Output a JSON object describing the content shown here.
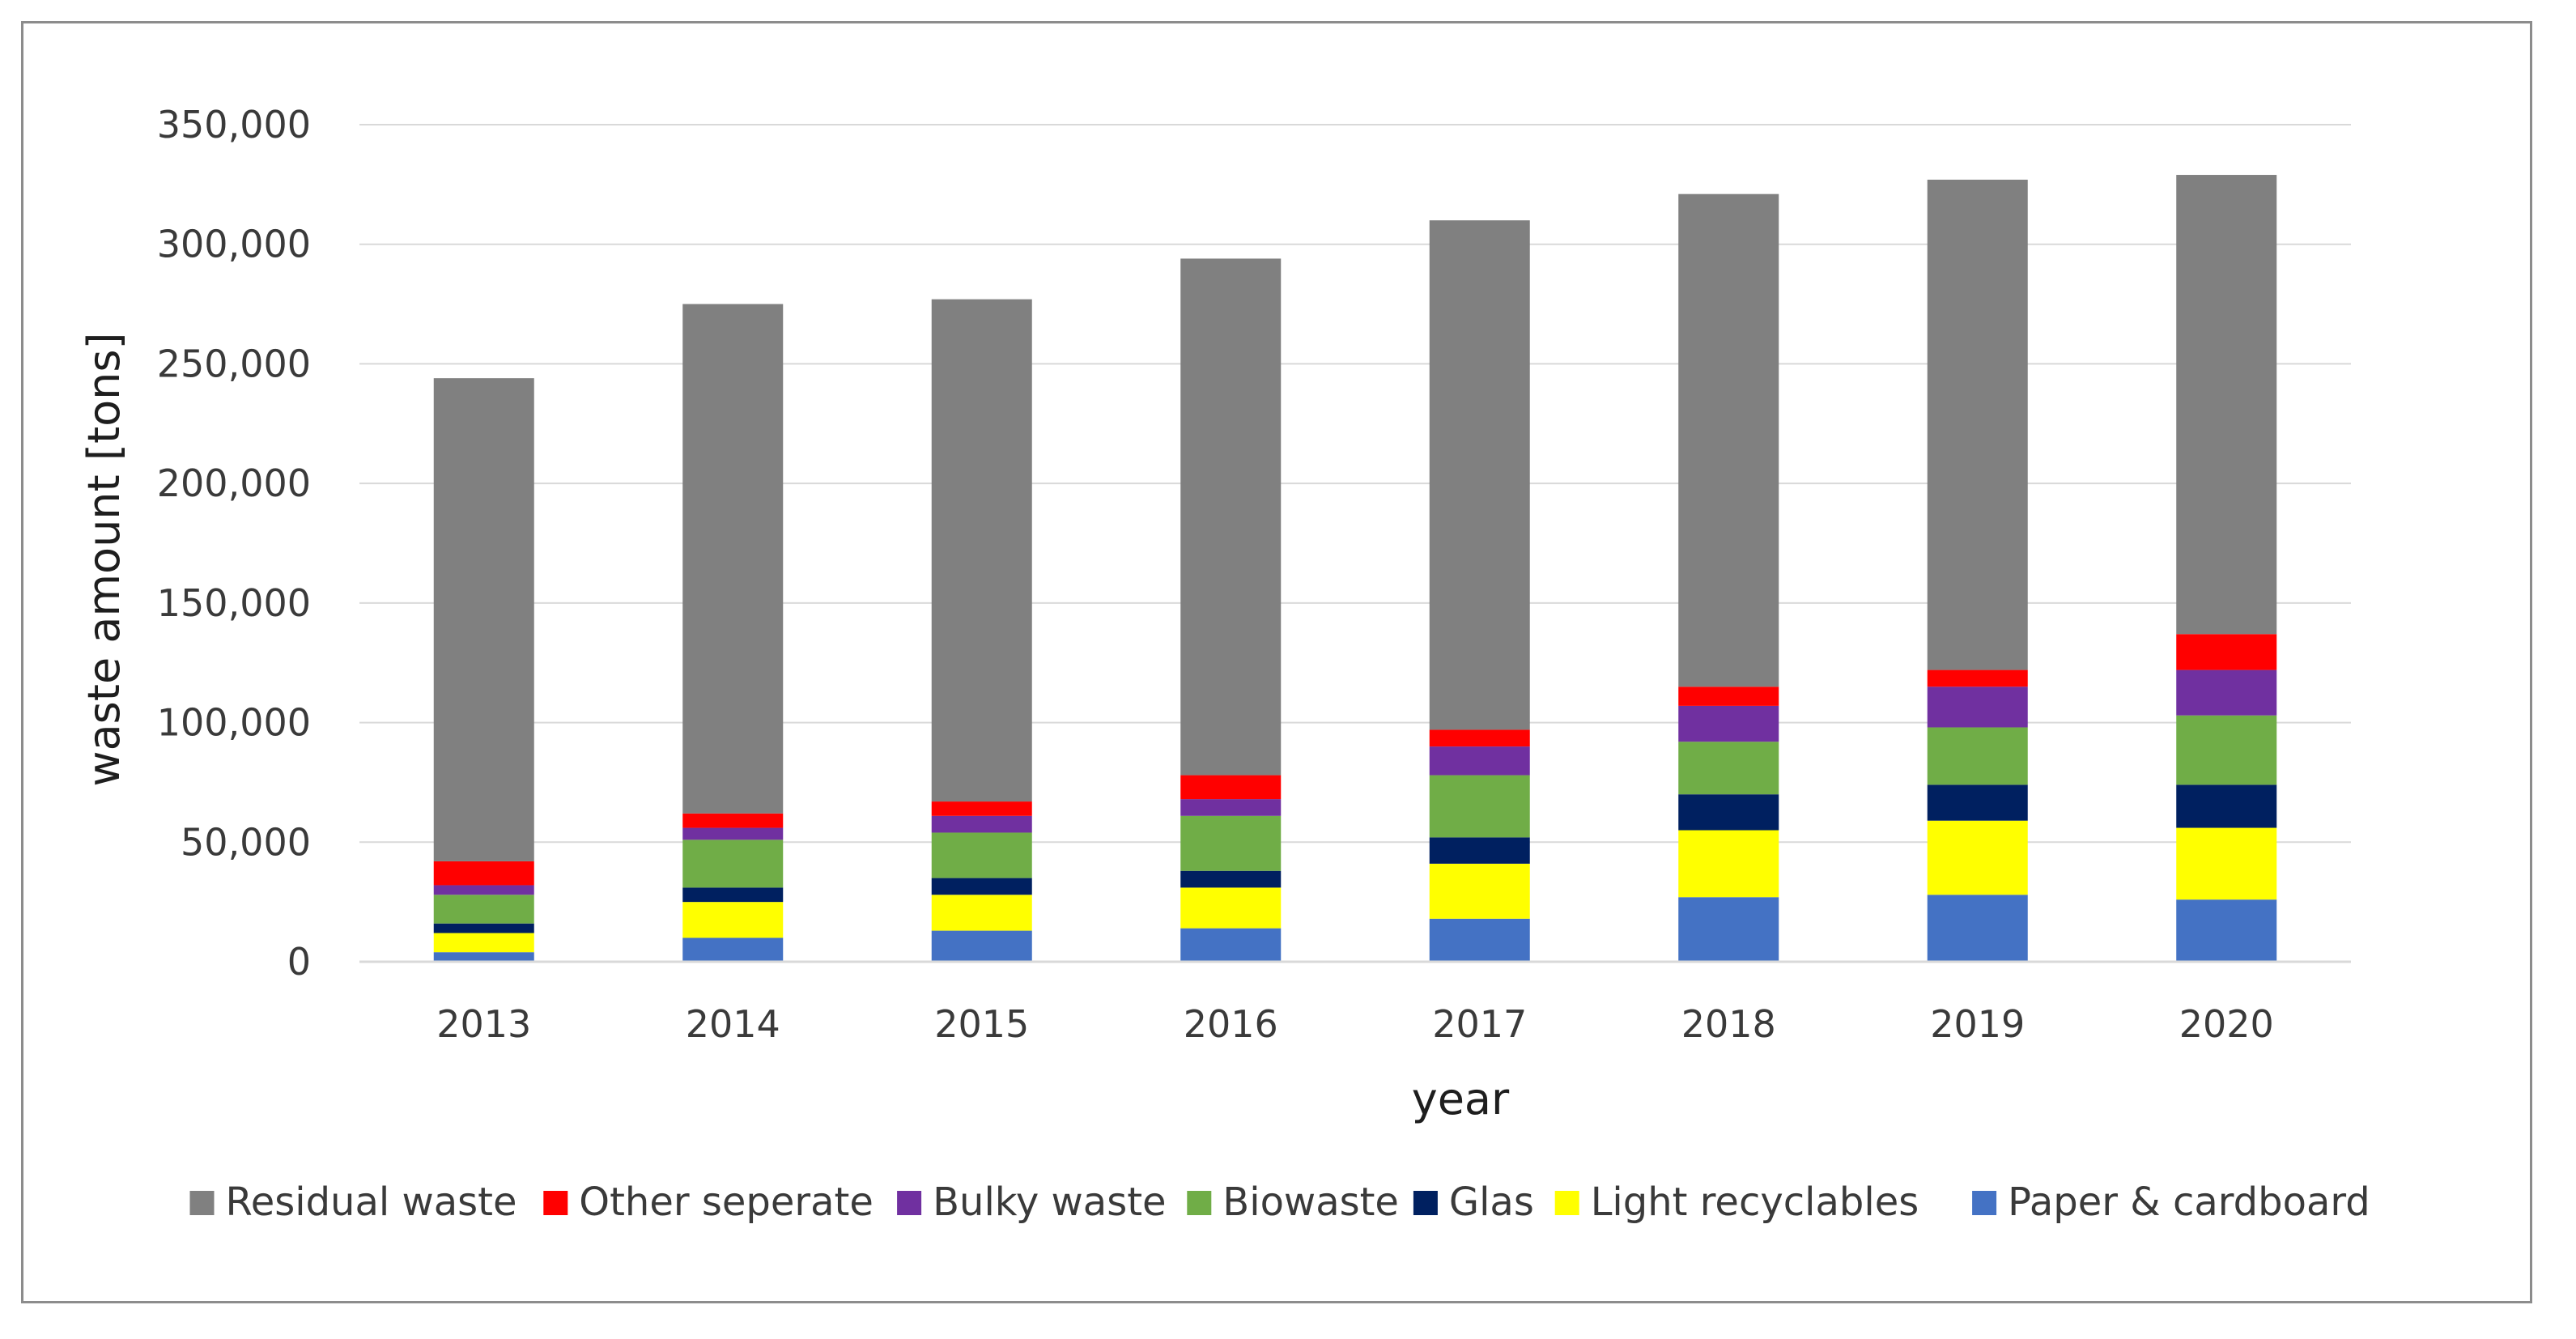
{
  "chart_data": {
    "type": "bar",
    "stacked": true,
    "title": "",
    "xlabel": "year",
    "ylabel": "waste amount [tons]",
    "ylim": [
      0,
      350000
    ],
    "yticks": [
      0,
      50000,
      100000,
      150000,
      200000,
      250000,
      300000,
      350000
    ],
    "ytick_labels": [
      "0",
      "50,000",
      "100,000",
      "150,000",
      "200,000",
      "250,000",
      "300,000",
      "350,000"
    ],
    "grid": true,
    "legend_position": "bottom",
    "categories": [
      "2013",
      "2014",
      "2015",
      "2016",
      "2017",
      "2018",
      "2019",
      "2020"
    ],
    "series": [
      {
        "name": "Paper & cardboard",
        "color": "#4472C4",
        "values": [
          4000,
          10000,
          13000,
          14000,
          18000,
          27000,
          28000,
          26000
        ]
      },
      {
        "name": "Light recyclables",
        "color": "#FFFF00",
        "values": [
          8000,
          15000,
          15000,
          17000,
          23000,
          28000,
          31000,
          30000
        ]
      },
      {
        "name": "Glas",
        "color": "#002060",
        "values": [
          4000,
          6000,
          7000,
          7000,
          11000,
          15000,
          15000,
          18000
        ]
      },
      {
        "name": "Biowaste",
        "color": "#70AD47",
        "values": [
          12000,
          20000,
          19000,
          23000,
          26000,
          22000,
          24000,
          29000
        ]
      },
      {
        "name": "Bulky waste",
        "color": "#7030A0",
        "values": [
          4000,
          5000,
          7000,
          7000,
          12000,
          15000,
          17000,
          19000
        ]
      },
      {
        "name": "Other seperate",
        "color": "#FF0000",
        "values": [
          10000,
          6000,
          6000,
          10000,
          7000,
          8000,
          7000,
          15000
        ]
      },
      {
        "name": "Residual waste",
        "color": "#808080",
        "values": [
          202000,
          213000,
          210000,
          216000,
          213000,
          206000,
          205000,
          192000
        ]
      }
    ],
    "legend_order": [
      "Residual waste",
      "Other seperate",
      "Bulky waste",
      "Biowaste",
      "Glas",
      "Light recyclables",
      "Paper & cardboard"
    ]
  }
}
